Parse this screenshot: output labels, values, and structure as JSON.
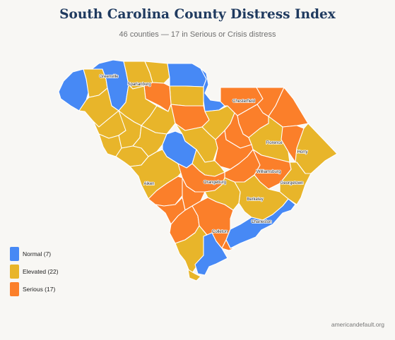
{
  "title": "South Carolina County Distress Index",
  "subtitle": "46 counties — 17 in Serious or Crisis distress",
  "colors": {
    "normal": "#4789f5",
    "elevated": "#e8b52a",
    "serious": "#fb7f2a",
    "border": "#ffffff"
  },
  "legend": [
    {
      "key": "normal",
      "label": "Normal (7)",
      "color": "#4789f5"
    },
    {
      "key": "elevated",
      "label": "Elevated (22)",
      "color": "#e8b52a"
    },
    {
      "key": "serious",
      "label": "Serious (17)",
      "color": "#fb7f2a"
    }
  ],
  "county_labels": [
    "Greenville",
    "Spartanburg",
    "Chesterfield",
    "Florence",
    "Horry",
    "Williamsburg",
    "Georgetown",
    "Aiken",
    "Orangeburg",
    "Berkeley",
    "Charleston",
    "Colleton"
  ],
  "source": "americandefault.org"
}
